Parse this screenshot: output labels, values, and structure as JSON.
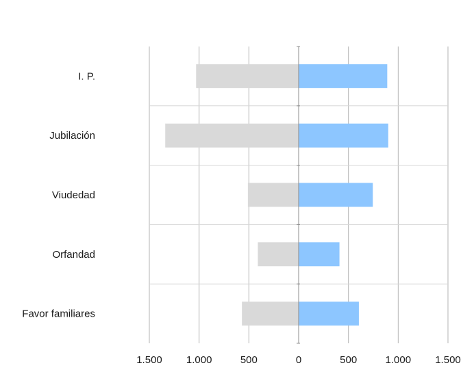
{
  "chart_data": {
    "type": "bar",
    "orientation": "horizontal",
    "diverging": true,
    "categories": [
      "I. P.",
      "Jubilación",
      "Viudedad",
      "Orfandad",
      "Favor familiares"
    ],
    "series": [
      {
        "color": "#d9d9d9",
        "side": "left",
        "values": [
          1030,
          1340,
          510,
          410,
          570
        ]
      },
      {
        "color": "#8dc6ff",
        "side": "right",
        "values": [
          890,
          900,
          745,
          410,
          605
        ]
      }
    ],
    "xlim": [
      -1500,
      1500
    ],
    "xticks": [
      -1500,
      -1000,
      -500,
      0,
      500,
      1000,
      1500
    ],
    "xtick_labels": [
      "1.500",
      "1.000",
      "500",
      "0",
      "500",
      "1.000",
      "1.500"
    ],
    "grid": true,
    "legend": "none"
  }
}
